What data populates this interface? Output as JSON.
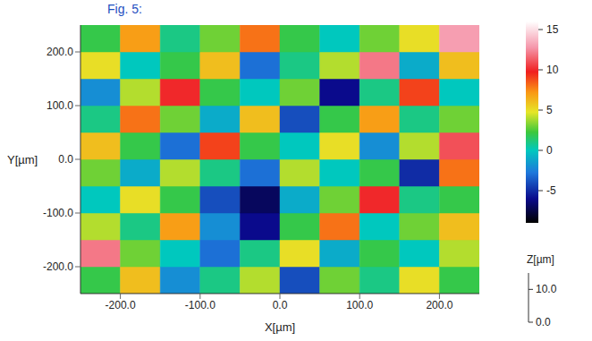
{
  "chart_data": {
    "type": "heatmap",
    "title": "Fig. 5:",
    "xlabel": "X[µm]",
    "ylabel": "Y[µm]",
    "xlim": [
      -250,
      250
    ],
    "ylim": [
      -250,
      250
    ],
    "xticks": [
      {
        "value": -200,
        "label": "-200.0"
      },
      {
        "value": -100,
        "label": "-100.0"
      },
      {
        "value": 0,
        "label": "0.0"
      },
      {
        "value": 100,
        "label": "100.0"
      },
      {
        "value": 200,
        "label": "200.0"
      }
    ],
    "yticks": [
      {
        "value": -200,
        "label": "-200.0"
      },
      {
        "value": -100,
        "label": "-100.0"
      },
      {
        "value": 0,
        "label": "0.0"
      },
      {
        "value": 100,
        "label": "100.0"
      },
      {
        "value": 200,
        "label": "200.0"
      }
    ],
    "x_edges": [
      -250,
      -200,
      -150,
      -100,
      -50,
      0,
      50,
      100,
      150,
      200,
      250
    ],
    "y_edges": [
      -250,
      -200,
      -150,
      -100,
      -50,
      0,
      50,
      100,
      150,
      200,
      250
    ],
    "values": [
      [
        2,
        6,
        -2,
        1,
        4,
        -4,
        3,
        1,
        5,
        2
      ],
      [
        12,
        3,
        0,
        -3,
        1,
        5,
        -1,
        2,
        0,
        4
      ],
      [
        4,
        1,
        7,
        -2,
        -6,
        2,
        8,
        0,
        3,
        6
      ],
      [
        0,
        5,
        2,
        -4,
        -7,
        -1,
        3,
        10,
        1,
        2
      ],
      [
        3,
        -1,
        4,
        1,
        -3,
        4,
        0,
        2,
        -5,
        8
      ],
      [
        6,
        2,
        -3,
        9,
        2,
        0,
        5,
        -2,
        4,
        11
      ],
      [
        1,
        8,
        3,
        -1,
        6,
        -4,
        2,
        7,
        1,
        3
      ],
      [
        -2,
        4,
        10,
        2,
        0,
        3,
        -6,
        1,
        9,
        0
      ],
      [
        5,
        0,
        2,
        6,
        -3,
        1,
        4,
        12,
        -1,
        6
      ],
      [
        2,
        7,
        1,
        3,
        8,
        2,
        0,
        3,
        5,
        13
      ]
    ],
    "colorbar": {
      "lim": [
        -9,
        16
      ],
      "ticks": [
        15,
        10,
        5,
        0,
        -5
      ]
    },
    "z_axis": {
      "label": "Z[µm]",
      "lim": [
        0,
        15
      ],
      "ticks": [
        {
          "value": 10,
          "label": "10.0"
        },
        {
          "value": 0,
          "label": "0.0"
        }
      ]
    }
  }
}
